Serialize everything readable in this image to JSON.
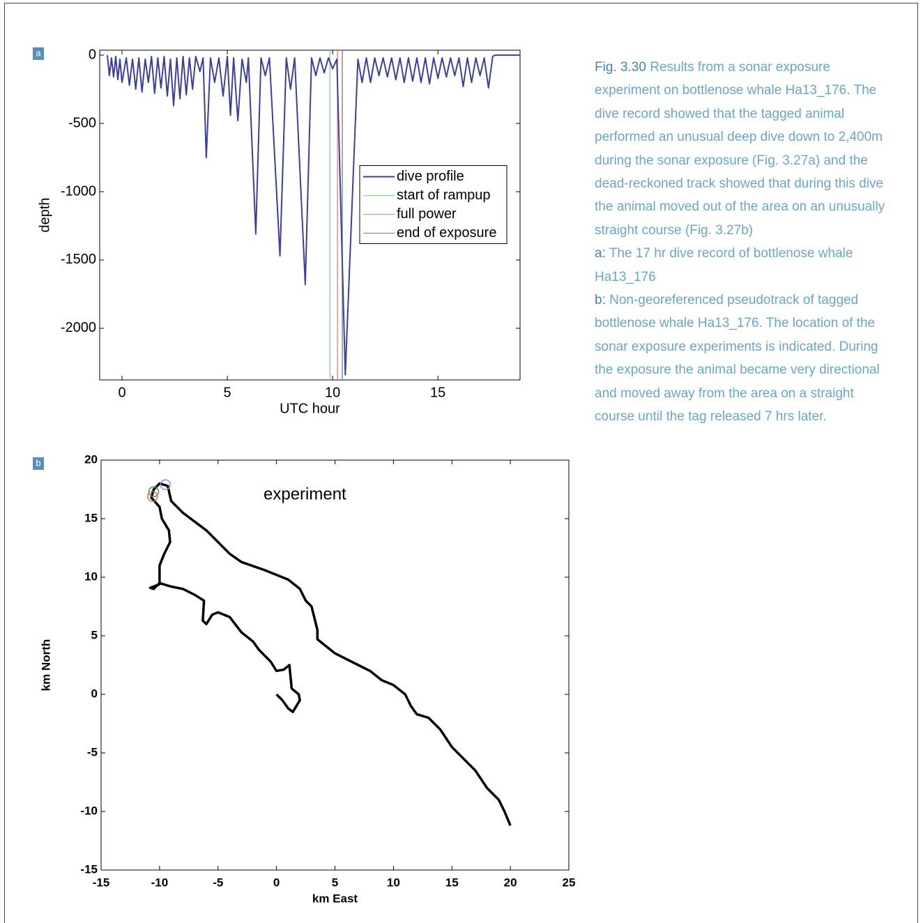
{
  "chart_data": [
    {
      "type": "line",
      "panel": "a",
      "xlabel": "UTC hour",
      "ylabel": "depth",
      "xlim": [
        -1.06,
        18.9
      ],
      "ylim": [
        -2378,
        36
      ],
      "xticks": [
        0,
        5,
        10,
        15
      ],
      "yticks": [
        0,
        -500,
        -1000,
        -1500,
        -2000
      ],
      "legend": "center right",
      "series": [
        {
          "name": "dive profile",
          "color": "#3b3f9e",
          "x": [
            -0.7,
            -0.6,
            -0.5,
            -0.4,
            -0.3,
            -0.2,
            -0.1,
            0,
            0.2,
            0.35,
            0.5,
            0.65,
            0.8,
            0.95,
            1.1,
            1.25,
            1.4,
            1.55,
            1.7,
            1.85,
            2.0,
            2.15,
            2.3,
            2.45,
            2.6,
            2.75,
            2.9,
            3.05,
            3.2,
            3.35,
            3.5,
            3.7,
            3.85,
            4.0,
            4.2,
            4.4,
            4.6,
            4.8,
            5.0,
            5.15,
            5.3,
            5.5,
            5.7,
            5.9,
            6.0,
            6.35,
            6.6,
            6.8,
            7.0,
            7.5,
            7.8,
            8.0,
            8.2,
            8.7,
            9.0,
            9.2,
            9.4,
            9.6,
            9.8,
            10.0,
            10.2,
            10.6,
            11.0,
            11.2,
            11.4,
            11.6,
            11.8,
            12.0,
            12.2,
            12.4,
            12.6,
            12.8,
            13.0,
            13.2,
            13.4,
            13.6,
            13.8,
            14.0,
            14.2,
            14.4,
            14.6,
            14.8,
            15.0,
            15.2,
            15.4,
            15.6,
            15.8,
            16.0,
            16.2,
            16.4,
            16.6,
            16.8,
            17.0,
            17.2,
            17.4,
            17.6,
            17.7,
            18.9
          ],
          "values": [
            0,
            -150,
            -20,
            -160,
            -10,
            -180,
            -30,
            -200,
            -20,
            -220,
            -30,
            -250,
            -20,
            -270,
            -30,
            -200,
            -10,
            -280,
            -20,
            -240,
            -10,
            -300,
            -30,
            -370,
            -20,
            -320,
            -10,
            -290,
            -20,
            -250,
            -10,
            -120,
            -20,
            -750,
            -20,
            -200,
            -20,
            -300,
            -10,
            -440,
            -20,
            -480,
            -30,
            -200,
            -20,
            -1310,
            -20,
            -150,
            -20,
            -1470,
            -20,
            -250,
            -20,
            -1680,
            -20,
            -150,
            -20,
            -130,
            -20,
            -100,
            -30,
            -2340,
            -800,
            -30,
            -200,
            -20,
            -200,
            -20,
            -150,
            -20,
            -160,
            -20,
            -180,
            -20,
            -200,
            -20,
            -190,
            -20,
            -200,
            -20,
            -210,
            -20,
            -170,
            -20,
            -160,
            -20,
            -150,
            -20,
            -230,
            -20,
            -200,
            -20,
            -150,
            -20,
            -240,
            -10,
            0,
            0
          ]
        }
      ],
      "vlines": [
        {
          "name": "start of rampup",
          "color": "#92d492",
          "x": 9.87
        },
        {
          "name": "full power",
          "color": "#e79191",
          "x": 10.23
        },
        {
          "name": "end of exposure",
          "color": "#8a8a8a",
          "x": 10.46
        }
      ]
    },
    {
      "type": "line",
      "panel": "b",
      "xlabel": "km East",
      "ylabel": "km North",
      "annotation": "experiment",
      "xlim": [
        -15,
        25
      ],
      "ylim": [
        -15,
        20
      ],
      "xticks": [
        -15,
        -10,
        -5,
        0,
        5,
        10,
        15,
        20,
        25
      ],
      "yticks": [
        -15,
        -10,
        -5,
        0,
        5,
        10,
        15,
        20
      ],
      "series": [
        {
          "color": "#000000",
          "x": [
            0,
            0.5,
            1,
            1.4,
            2,
            1.9,
            1.3,
            1.1,
            0.6,
            0,
            -0.5,
            -1.5,
            -2,
            -3,
            -4,
            -5,
            -5.5,
            -6,
            -6.3,
            -6.2,
            -7,
            -8,
            -9,
            -10,
            -10.5,
            -10.8,
            -10,
            -10,
            -9.6,
            -9.1,
            -9.2,
            -9.8,
            -10,
            -10.7,
            -10.5,
            -10,
            -9.3,
            -9,
            -8,
            -6,
            -5,
            -4,
            -3,
            -1,
            1,
            2,
            2.5,
            3,
            3.5,
            3.5,
            5,
            7,
            8,
            9,
            10,
            11,
            11.5,
            12,
            13,
            14,
            15,
            16,
            17,
            18,
            19,
            19.5,
            20
          ],
          "values": [
            0,
            -0.5,
            -1.2,
            -1.5,
            -0.5,
            0,
            0.5,
            2.5,
            2.1,
            2,
            2.8,
            3.8,
            4.5,
            5.3,
            6.6,
            7,
            6.8,
            6,
            6.3,
            8,
            8.5,
            9,
            9.2,
            9.5,
            9,
            9.1,
            9.4,
            11,
            12,
            13,
            14,
            15,
            16,
            16.8,
            17.5,
            18,
            17.8,
            16.5,
            15.5,
            14,
            13,
            12,
            11.3,
            10.6,
            9.8,
            9,
            8,
            7.5,
            5.5,
            4.7,
            3.5,
            2.5,
            2,
            1.2,
            0.8,
            0,
            -1,
            -1.7,
            -2,
            -3,
            -4.5,
            -5.5,
            -6.5,
            -8,
            -9,
            -10,
            -11.2
          ]
        }
      ],
      "points": [
        {
          "color": "#3fa04a",
          "x": -10.5,
          "y": 17.3
        },
        {
          "color": "#e06a4a",
          "x": -10.6,
          "y": 16.9
        },
        {
          "color": "#8a8fe0",
          "x": -9.5,
          "y": 17.9
        }
      ]
    }
  ],
  "caption": {
    "figure": "Fig. 3.30",
    "text": "Results from a sonar exposure experiment on bottlenose whale Ha13_176. The dive record showed that the tagged animal performed an unusual deep dive down to 2,400m during the sonar exposure (Fig. 3.27a) and the dead-reckoned track showed that during this dive the animal moved out of the area on an unusually straight course (Fig. 3.27b)",
    "items": [
      {
        "label": "a:",
        "text": "The 17 hr dive record of bottlenose whale Ha13_176"
      },
      {
        "label": "b:",
        "text": "Non-georeferenced pseudotrack of tagged bottlenose whale Ha13_176. The location of the sonar exposure experiments is indicated. During the exposure the animal became very directional and moved away from the area on a straight course until the tag released 7 hrs later."
      }
    ]
  }
}
